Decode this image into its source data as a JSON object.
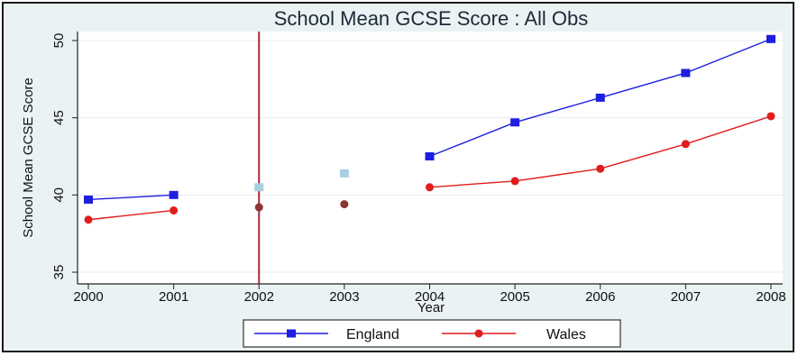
{
  "chart_data": {
    "type": "line",
    "title": "School Mean GCSE Score  : All Obs",
    "xlabel": "Year",
    "ylabel": "School Mean GCSE Score",
    "x": [
      2000,
      2001,
      2002,
      2003,
      2004,
      2005,
      2006,
      2007,
      2008
    ],
    "xlim": [
      2000,
      2008
    ],
    "ylim": [
      35,
      50
    ],
    "yticks": [
      35,
      40,
      45,
      50
    ],
    "grid": "horizontal",
    "legend_position": "bottom",
    "vertical_reference_line": 2002,
    "series": [
      {
        "name": "England",
        "color": "#1e1ee0",
        "marker": "square",
        "values": [
          39.7,
          40.0,
          40.5,
          41.4,
          42.5,
          44.7,
          46.3,
          47.9,
          50.1
        ],
        "connected": [
          true,
          true,
          false,
          false,
          true,
          true,
          true,
          true,
          true
        ],
        "faded_color": "#a9cfe2"
      },
      {
        "name": "Wales",
        "color": "#e11c1c",
        "marker": "circle",
        "values": [
          38.4,
          39.0,
          39.2,
          39.4,
          40.5,
          40.9,
          41.7,
          43.3,
          45.1
        ],
        "connected": [
          true,
          true,
          false,
          false,
          true,
          true,
          true,
          true,
          true
        ],
        "faded_color": "#8b3535"
      }
    ],
    "ref_line_color": "#a52a3a"
  }
}
